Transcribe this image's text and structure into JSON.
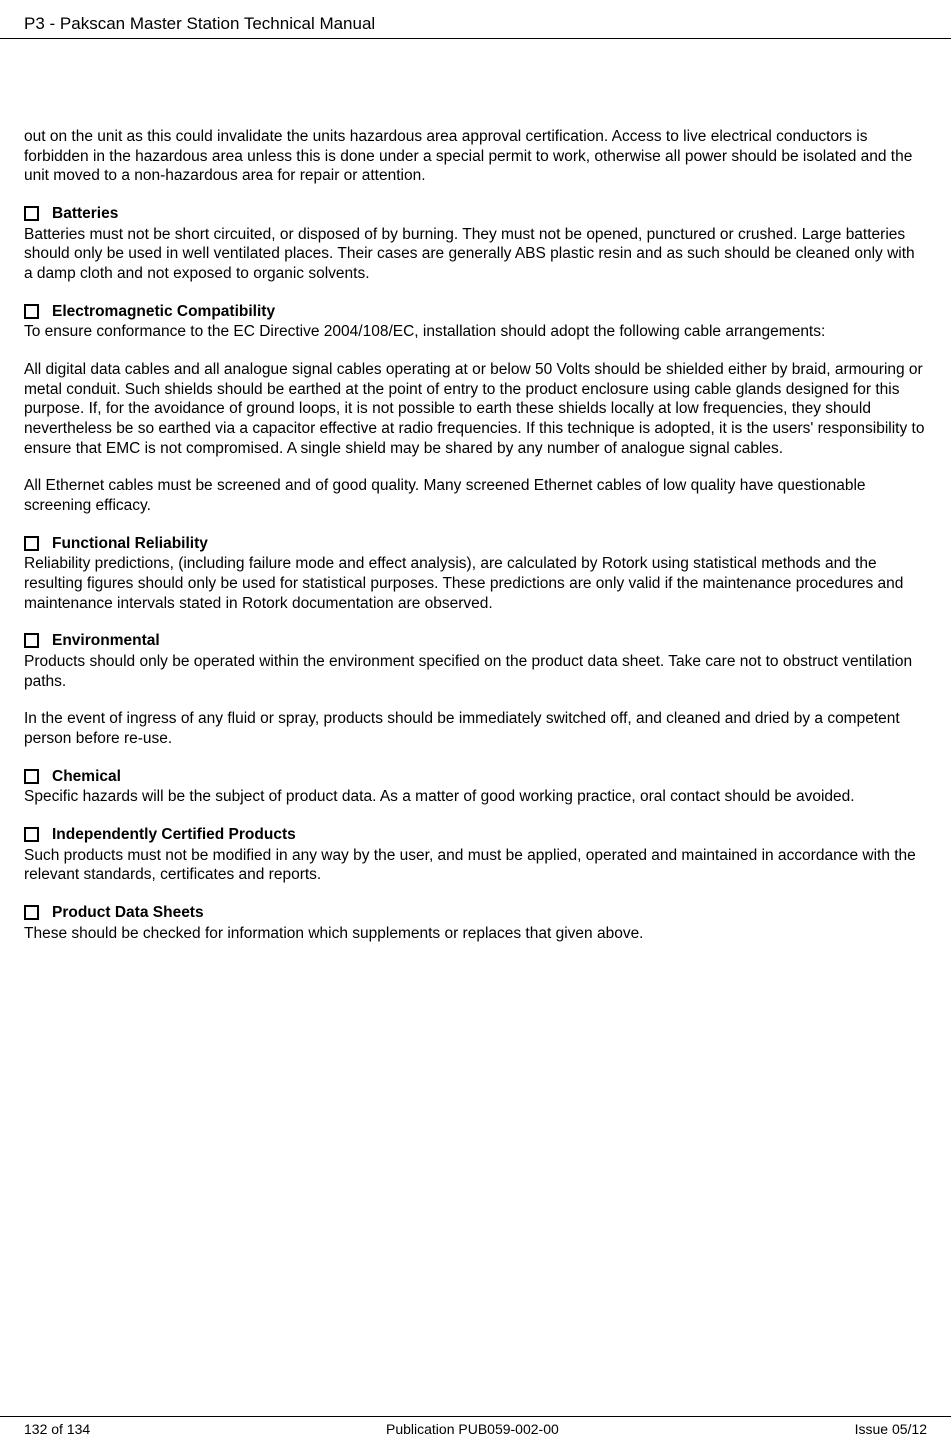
{
  "header": {
    "title": "P3 - Pakscan Master Station Technical Manual"
  },
  "intro_para": "out on the unit as this could invalidate the units hazardous area approval certification.  Access to live electrical conductors is forbidden in the hazardous area unless this is done under a special permit to work, otherwise all power should be isolated and the unit moved to a non-hazardous area for repair or attention.",
  "sections": {
    "batteries": {
      "title": "Batteries",
      "p1": "Batteries must not be short circuited, or disposed of by burning. They must not be opened, punctured or crushed. Large batteries should only be used in well ventilated places. Their cases are generally ABS plastic resin and as such should be cleaned only with a damp cloth and not exposed to organic solvents."
    },
    "emc": {
      "title": "Electromagnetic Compatibility",
      "p1": "To ensure conformance to the EC Directive 2004/108/EC, installation should adopt the following cable arrangements:",
      "p2": "All digital data cables and all analogue signal cables operating at or below 50 Volts should be shielded either by braid, armouring or metal conduit.  Such shields should be earthed at the point of entry to the product enclosure using cable glands designed for this purpose. If, for the avoidance of ground loops, it is not possible to earth these shields locally at low frequencies, they should nevertheless be so earthed via a capacitor effective at radio frequencies. If this technique is adopted, it is the users' responsibility to ensure that EMC is not compromised.  A single shield may be shared by any number of analogue signal cables.",
      "p3": "All Ethernet cables must be screened and of good quality. Many screened Ethernet cables of low quality have questionable screening efficacy."
    },
    "functional": {
      "title": "Functional Reliability",
      "p1": "Reliability predictions, (including failure mode and effect analysis), are calculated by Rotork using statistical methods and the resulting figures should only be used for statistical purposes. These predictions are only valid if the maintenance procedures and maintenance intervals stated in Rotork documentation are observed."
    },
    "environmental": {
      "title": "Environmental",
      "p1": "Products should only be operated within the environment specified on the product data sheet. Take care not to obstruct ventilation paths.",
      "p2": "In the event of ingress of any fluid or spray, products should be immediately switched off, and cleaned and dried by a competent person before re-use."
    },
    "chemical": {
      "title": "Chemical",
      "p1": "Specific hazards will be the subject of product data. As a matter of good working practice, oral contact should be avoided."
    },
    "certified": {
      "title": "Independently Certified Products",
      "p1": "Such products must not be modified in any way by the user, and must be applied, operated and maintained in accordance with the relevant standards, certificates and reports."
    },
    "datasheets": {
      "title": "Product Data Sheets",
      "p1": "These should be checked for information which supplements or replaces that given above."
    }
  },
  "footer": {
    "page": "132 of 134",
    "publication": "Publication PUB059-002-00",
    "issue": "Issue 05/12"
  }
}
